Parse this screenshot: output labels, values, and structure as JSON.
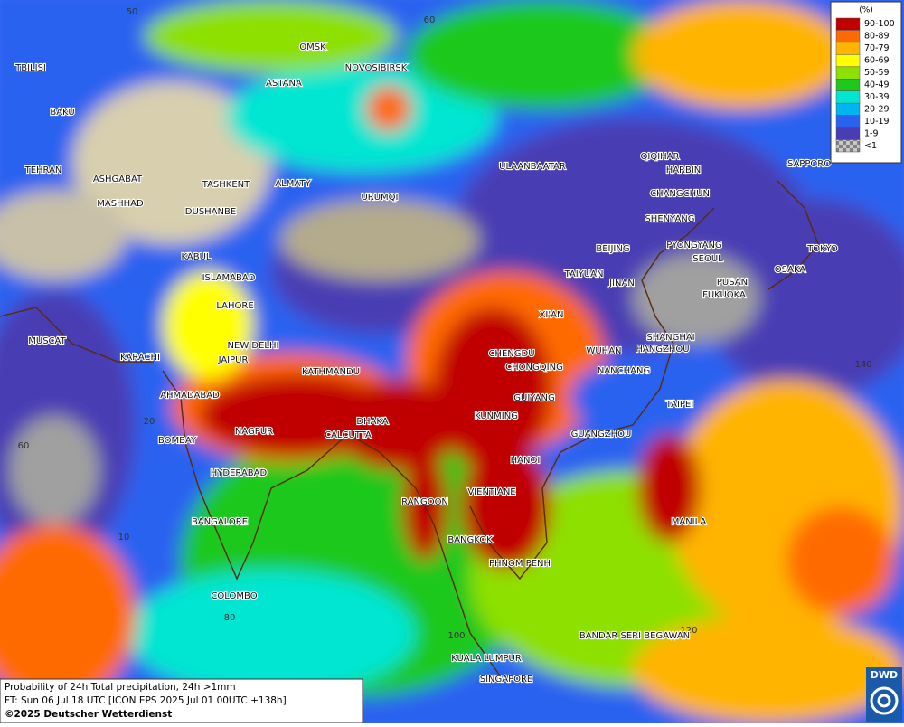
{
  "legend": {
    "unit": "(%)",
    "entries": [
      {
        "label": "90-100",
        "color": "#c00000"
      },
      {
        "label": "80-89",
        "color": "#ff6a00"
      },
      {
        "label": "70-79",
        "color": "#ffb400"
      },
      {
        "label": "60-69",
        "color": "#ffff00"
      },
      {
        "label": "50-59",
        "color": "#8ee000"
      },
      {
        "label": "40-49",
        "color": "#1ec81e"
      },
      {
        "label": "30-39",
        "color": "#00e6d2"
      },
      {
        "label": "20-29",
        "color": "#00b4f0"
      },
      {
        "label": "10-19",
        "color": "#2a62f0"
      },
      {
        "label": "1-9",
        "color": "#4a3cb4"
      },
      {
        "label": "<1",
        "color": "#a0a0a0"
      }
    ]
  },
  "cities": [
    "OMSK",
    "NOVOSIBIRSK",
    "ASTANA",
    "TBILISI",
    "BAKU",
    "TEHRAN",
    "ASHGABAT",
    "MASHHAD",
    "TASHKENT",
    "ALMATY",
    "URUMQI",
    "DUSHANBE",
    "ULAANBAATAR",
    "QIQIHAR",
    "HARBIN",
    "CHANGCHUN",
    "SHENYANG",
    "BEIJING",
    "PYONGYANG",
    "SEOUL",
    "SAPPORO",
    "TOKYO",
    "OSAKA",
    "PUSAN",
    "FUKUOKA",
    "TAIYUAN",
    "JINAN",
    "XI'AN",
    "KABUL",
    "ISLAMABAD",
    "LAHORE",
    "NEW DELHI",
    "JAIPUR",
    "KATHMANDU",
    "MUSCAT",
    "KARACHI",
    "AHMADABAD",
    "CHENGDU",
    "CHONGQING",
    "SHANGHAI",
    "HANGZHOU",
    "WUHAN",
    "NANCHANG",
    "GUIYANG",
    "TAIPEI",
    "KUNMING",
    "DHAKA",
    "CALCUTTA",
    "NAGPUR",
    "BOMBAY",
    "GUANGZHOU",
    "HANOI",
    "HYDERABAD",
    "VIENTIANE",
    "RANGOON",
    "BANGALORE",
    "MANILA",
    "BANGKOK",
    "PHNOM PENH",
    "COLOMBO",
    "BANDAR SERI BEGAWAN",
    "KUALA LUMPUR",
    "SINGAPORE"
  ],
  "grid_labels": [
    50,
    60,
    140,
    20,
    60,
    10,
    80,
    100,
    120
  ],
  "footer": {
    "product": "Probability of 24h Total precipitation, 24h >1mm",
    "forecast": "FT: Sun 06 Jul 18 UTC [ICON EPS 2025 Jul 01 00UTC +138h]",
    "copyright": "©2025 Deutscher Wetterdienst"
  },
  "logo": "DWD"
}
